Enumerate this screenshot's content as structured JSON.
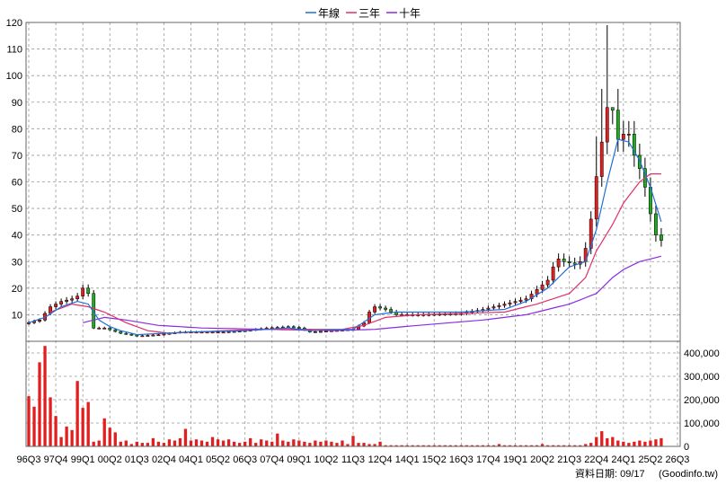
{
  "legend": {
    "items": [
      {
        "label": "年線",
        "color": "#1e6fd9"
      },
      {
        "label": "三年",
        "color": "#e0306a"
      },
      {
        "label": "十年",
        "color": "#8a2be2"
      }
    ]
  },
  "footer": {
    "date_label": "資料日期: 09/17",
    "source": "(Goodinfo.tw)"
  },
  "colors": {
    "up": "#e02020",
    "down": "#22aa22",
    "wick": "#000000",
    "volume": "#e02020",
    "grid": "#999999",
    "frame": "#666666"
  },
  "chart_data": {
    "type": "candlestick-with-volume",
    "x_tick_labels": [
      "96Q3",
      "97Q4",
      "99Q1",
      "00Q2",
      "01Q3",
      "02Q4",
      "04Q1",
      "05Q2",
      "06Q3",
      "07Q4",
      "09Q1",
      "10Q2",
      "11Q3",
      "12Q4",
      "14Q1",
      "15Q2",
      "16Q3",
      "17Q4",
      "19Q1",
      "20Q2",
      "21Q3",
      "22Q4",
      "24Q1",
      "25Q2",
      "26Q3"
    ],
    "price_axis": {
      "ylim": [
        0,
        120
      ],
      "ticks": [
        10,
        20,
        30,
        40,
        50,
        60,
        70,
        80,
        90,
        100,
        110,
        120
      ]
    },
    "volume_axis": {
      "ylim": [
        0,
        450000
      ],
      "ticks": [
        0,
        100000,
        200000,
        300000,
        400000
      ],
      "tick_labels": [
        "0",
        "100,000",
        "200,000",
        "300,000",
        "400,000"
      ]
    },
    "grid": true,
    "legend_position": "top-center",
    "quarters_count": 121,
    "close_anchors": [
      [
        0,
        7
      ],
      [
        2,
        8
      ],
      [
        4,
        13
      ],
      [
        6,
        15
      ],
      [
        8,
        16
      ],
      [
        9,
        17
      ],
      [
        10,
        20
      ],
      [
        11,
        18
      ],
      [
        12,
        5
      ],
      [
        14,
        5
      ],
      [
        17,
        3
      ],
      [
        20,
        2
      ],
      [
        24,
        2.5
      ],
      [
        28,
        3.5
      ],
      [
        32,
        3.5
      ],
      [
        36,
        3.5
      ],
      [
        40,
        4
      ],
      [
        44,
        5
      ],
      [
        48,
        5.5
      ],
      [
        50,
        5
      ],
      [
        52,
        3.5
      ],
      [
        56,
        4
      ],
      [
        60,
        4.5
      ],
      [
        62,
        7
      ],
      [
        63,
        11
      ],
      [
        64,
        13
      ],
      [
        66,
        12
      ],
      [
        68,
        10
      ],
      [
        72,
        10
      ],
      [
        80,
        10.5
      ],
      [
        84,
        12
      ],
      [
        88,
        14
      ],
      [
        92,
        16
      ],
      [
        96,
        23
      ],
      [
        97,
        28
      ],
      [
        98,
        31
      ],
      [
        99,
        30
      ],
      [
        101,
        29
      ],
      [
        102,
        30
      ],
      [
        103,
        35
      ],
      [
        104,
        46
      ],
      [
        105,
        62
      ],
      [
        106,
        75
      ],
      [
        107,
        88
      ],
      [
        108,
        87
      ],
      [
        109,
        76
      ],
      [
        110,
        78
      ],
      [
        111,
        78
      ],
      [
        112,
        70
      ],
      [
        113,
        65
      ],
      [
        114,
        58
      ],
      [
        115,
        48
      ],
      [
        116,
        40
      ],
      [
        117,
        38
      ]
    ],
    "high_anchors": [
      [
        105,
        77
      ],
      [
        106,
        95
      ],
      [
        107,
        119
      ],
      [
        108,
        88
      ],
      [
        109,
        95
      ]
    ],
    "ma_year": [
      [
        0,
        7
      ],
      [
        3,
        9
      ],
      [
        6,
        13
      ],
      [
        9,
        15
      ],
      [
        11,
        14
      ],
      [
        13,
        8
      ],
      [
        15,
        5.5
      ],
      [
        17,
        4
      ],
      [
        20,
        2.5
      ],
      [
        30,
        3.5
      ],
      [
        40,
        4
      ],
      [
        48,
        5
      ],
      [
        52,
        4
      ],
      [
        60,
        4.5
      ],
      [
        64,
        10
      ],
      [
        68,
        11
      ],
      [
        80,
        11
      ],
      [
        88,
        12
      ],
      [
        92,
        15
      ],
      [
        96,
        20
      ],
      [
        100,
        28
      ],
      [
        103,
        30
      ],
      [
        105,
        42
      ],
      [
        107,
        60
      ],
      [
        109,
        76
      ],
      [
        111,
        75
      ],
      [
        113,
        68
      ],
      [
        115,
        58
      ],
      [
        117,
        45
      ]
    ],
    "ma_3year": [
      [
        4,
        11
      ],
      [
        8,
        14
      ],
      [
        11,
        13
      ],
      [
        14,
        11
      ],
      [
        18,
        7
      ],
      [
        22,
        4
      ],
      [
        26,
        3
      ],
      [
        36,
        4
      ],
      [
        44,
        4.5
      ],
      [
        52,
        4.5
      ],
      [
        58,
        4.5
      ],
      [
        62,
        6
      ],
      [
        66,
        9
      ],
      [
        72,
        10
      ],
      [
        80,
        10.5
      ],
      [
        88,
        11
      ],
      [
        94,
        14
      ],
      [
        100,
        18
      ],
      [
        103,
        24
      ],
      [
        105,
        34
      ],
      [
        108,
        44
      ],
      [
        110,
        52
      ],
      [
        113,
        60
      ],
      [
        115,
        63
      ],
      [
        117,
        63
      ]
    ],
    "ma_10year": [
      [
        10,
        7
      ],
      [
        14,
        9
      ],
      [
        18,
        8
      ],
      [
        24,
        6
      ],
      [
        32,
        5
      ],
      [
        44,
        4.5
      ],
      [
        56,
        4
      ],
      [
        64,
        4.5
      ],
      [
        72,
        6
      ],
      [
        84,
        8
      ],
      [
        92,
        10
      ],
      [
        100,
        14
      ],
      [
        105,
        18
      ],
      [
        108,
        24
      ],
      [
        110,
        27
      ],
      [
        113,
        30
      ],
      [
        117,
        32
      ]
    ],
    "volume_bars": [
      [
        0,
        215000
      ],
      [
        1,
        170000
      ],
      [
        2,
        360000
      ],
      [
        3,
        430000
      ],
      [
        4,
        210000
      ],
      [
        5,
        130000
      ],
      [
        6,
        40000
      ],
      [
        7,
        85000
      ],
      [
        8,
        70000
      ],
      [
        9,
        280000
      ],
      [
        10,
        165000
      ],
      [
        11,
        190000
      ],
      [
        12,
        20000
      ],
      [
        13,
        25000
      ],
      [
        14,
        120000
      ],
      [
        15,
        80000
      ],
      [
        16,
        60000
      ],
      [
        17,
        20000
      ],
      [
        18,
        25000
      ],
      [
        19,
        10000
      ],
      [
        20,
        20000
      ],
      [
        21,
        15000
      ],
      [
        22,
        15000
      ],
      [
        23,
        35000
      ],
      [
        24,
        20000
      ],
      [
        25,
        15000
      ],
      [
        26,
        30000
      ],
      [
        27,
        25000
      ],
      [
        28,
        35000
      ],
      [
        29,
        75000
      ],
      [
        30,
        25000
      ],
      [
        31,
        30000
      ],
      [
        32,
        25000
      ],
      [
        33,
        20000
      ],
      [
        34,
        40000
      ],
      [
        35,
        30000
      ],
      [
        36,
        25000
      ],
      [
        37,
        30000
      ],
      [
        38,
        20000
      ],
      [
        39,
        15000
      ],
      [
        40,
        20000
      ],
      [
        41,
        35000
      ],
      [
        42,
        15000
      ],
      [
        43,
        30000
      ],
      [
        44,
        25000
      ],
      [
        45,
        20000
      ],
      [
        46,
        55000
      ],
      [
        47,
        25000
      ],
      [
        48,
        20000
      ],
      [
        49,
        30000
      ],
      [
        50,
        25000
      ],
      [
        51,
        20000
      ],
      [
        52,
        15000
      ],
      [
        53,
        25000
      ],
      [
        54,
        20000
      ],
      [
        55,
        25000
      ],
      [
        56,
        20000
      ],
      [
        57,
        15000
      ],
      [
        58,
        25000
      ],
      [
        59,
        10000
      ],
      [
        60,
        45000
      ],
      [
        61,
        15000
      ],
      [
        62,
        15000
      ],
      [
        63,
        10000
      ],
      [
        64,
        10000
      ],
      [
        65,
        20000
      ],
      [
        66,
        5000
      ],
      [
        67,
        5000
      ],
      [
        68,
        5000
      ],
      [
        69,
        5000
      ],
      [
        70,
        5000
      ],
      [
        71,
        5000
      ],
      [
        72,
        5000
      ],
      [
        73,
        5000
      ],
      [
        74,
        5000
      ],
      [
        75,
        5000
      ],
      [
        76,
        5000
      ],
      [
        77,
        5000
      ],
      [
        78,
        5000
      ],
      [
        79,
        5000
      ],
      [
        80,
        5000
      ],
      [
        81,
        5000
      ],
      [
        82,
        5000
      ],
      [
        83,
        5000
      ],
      [
        84,
        5000
      ],
      [
        85,
        5000
      ],
      [
        86,
        5000
      ],
      [
        87,
        10000
      ],
      [
        88,
        5000
      ],
      [
        89,
        5000
      ],
      [
        90,
        5000
      ],
      [
        91,
        5000
      ],
      [
        92,
        5000
      ],
      [
        93,
        5000
      ],
      [
        94,
        5000
      ],
      [
        95,
        10000
      ],
      [
        96,
        5000
      ],
      [
        97,
        5000
      ],
      [
        98,
        5000
      ],
      [
        99,
        5000
      ],
      [
        100,
        5000
      ],
      [
        101,
        5000
      ],
      [
        102,
        5000
      ],
      [
        103,
        10000
      ],
      [
        104,
        15000
      ],
      [
        105,
        40000
      ],
      [
        106,
        65000
      ],
      [
        107,
        35000
      ],
      [
        108,
        40000
      ],
      [
        109,
        25000
      ],
      [
        110,
        20000
      ],
      [
        111,
        15000
      ],
      [
        112,
        20000
      ],
      [
        113,
        25000
      ],
      [
        114,
        20000
      ],
      [
        115,
        25000
      ],
      [
        116,
        30000
      ],
      [
        117,
        35000
      ]
    ]
  }
}
